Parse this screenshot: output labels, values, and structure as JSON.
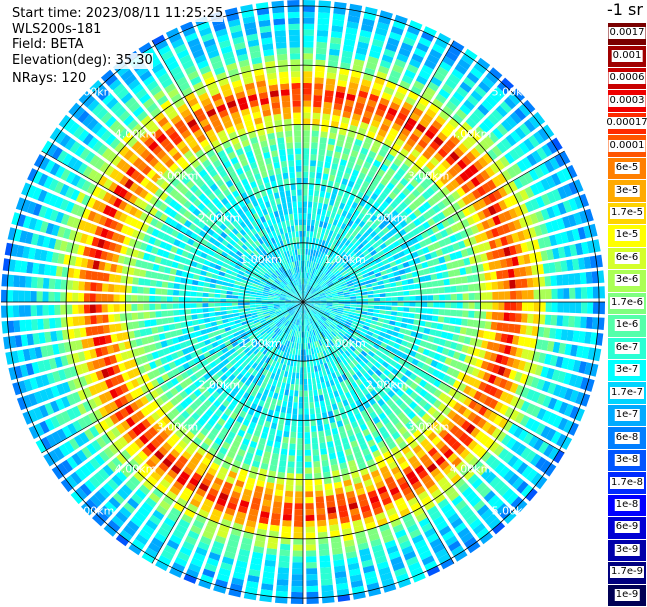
{
  "info": {
    "start_time": "Start time: 2023/08/11 11:25:25",
    "instrument": "WLS200s-181",
    "field": "Field: BETA",
    "elevation": "Elevation(deg): 35.30",
    "nrays": "NRays: 120"
  },
  "chart_data": {
    "type": "heatmap",
    "projection": "polar-ppi",
    "n_rays": 120,
    "range_rings_km": [
      1.0,
      2.0,
      3.0,
      4.0,
      5.0
    ],
    "ring_labels": [
      "1.00km",
      "2.00km",
      "3.00km",
      "4.00km",
      "5.00km"
    ],
    "max_range_km": 5.1,
    "field": "BETA",
    "colorbar_title": "-1 sr",
    "colorbar_labels": [
      "0.0017",
      "0.001",
      "0.0006",
      "0.0003",
      "0.00017",
      "0.0001",
      "6e-5",
      "3e-5",
      "1.7e-5",
      "1e-5",
      "6e-6",
      "3e-6",
      "1.7e-6",
      "1e-6",
      "6e-7",
      "3e-7",
      "1.7e-7",
      "1e-7",
      "6e-8",
      "3e-8",
      "1.7e-8",
      "1e-8",
      "6e-9",
      "3e-9",
      "1.7e-9",
      "1e-9"
    ],
    "colorbar_colors": [
      "#7a0000",
      "#a00000",
      "#c80000",
      "#f00000",
      "#ff2a00",
      "#ff5500",
      "#ff7f00",
      "#ffaa00",
      "#ffd400",
      "#ffff00",
      "#d4ff2a",
      "#aaff55",
      "#7fff7f",
      "#55ffaa",
      "#2affd4",
      "#00ffff",
      "#00d4ff",
      "#00aaff",
      "#007fff",
      "#0055ff",
      "#002aff",
      "#0000ff",
      "#0000d4",
      "#0000aa",
      "#00007f",
      "#000055"
    ],
    "range_profile": [
      {
        "range_km": 0.0,
        "log_beta": -6.6
      },
      {
        "range_km": 1.0,
        "log_beta": -6.5
      },
      {
        "range_km": 2.0,
        "log_beta": -6.4
      },
      {
        "range_km": 2.8,
        "log_beta": -6.0
      },
      {
        "range_km": 3.3,
        "log_beta": -4.6
      },
      {
        "range_km": 3.55,
        "log_beta": -3.7
      },
      {
        "range_km": 3.8,
        "log_beta": -4.8
      },
      {
        "range_km": 4.3,
        "log_beta": -6.3
      },
      {
        "range_km": 5.1,
        "log_beta": -7.0
      }
    ]
  }
}
